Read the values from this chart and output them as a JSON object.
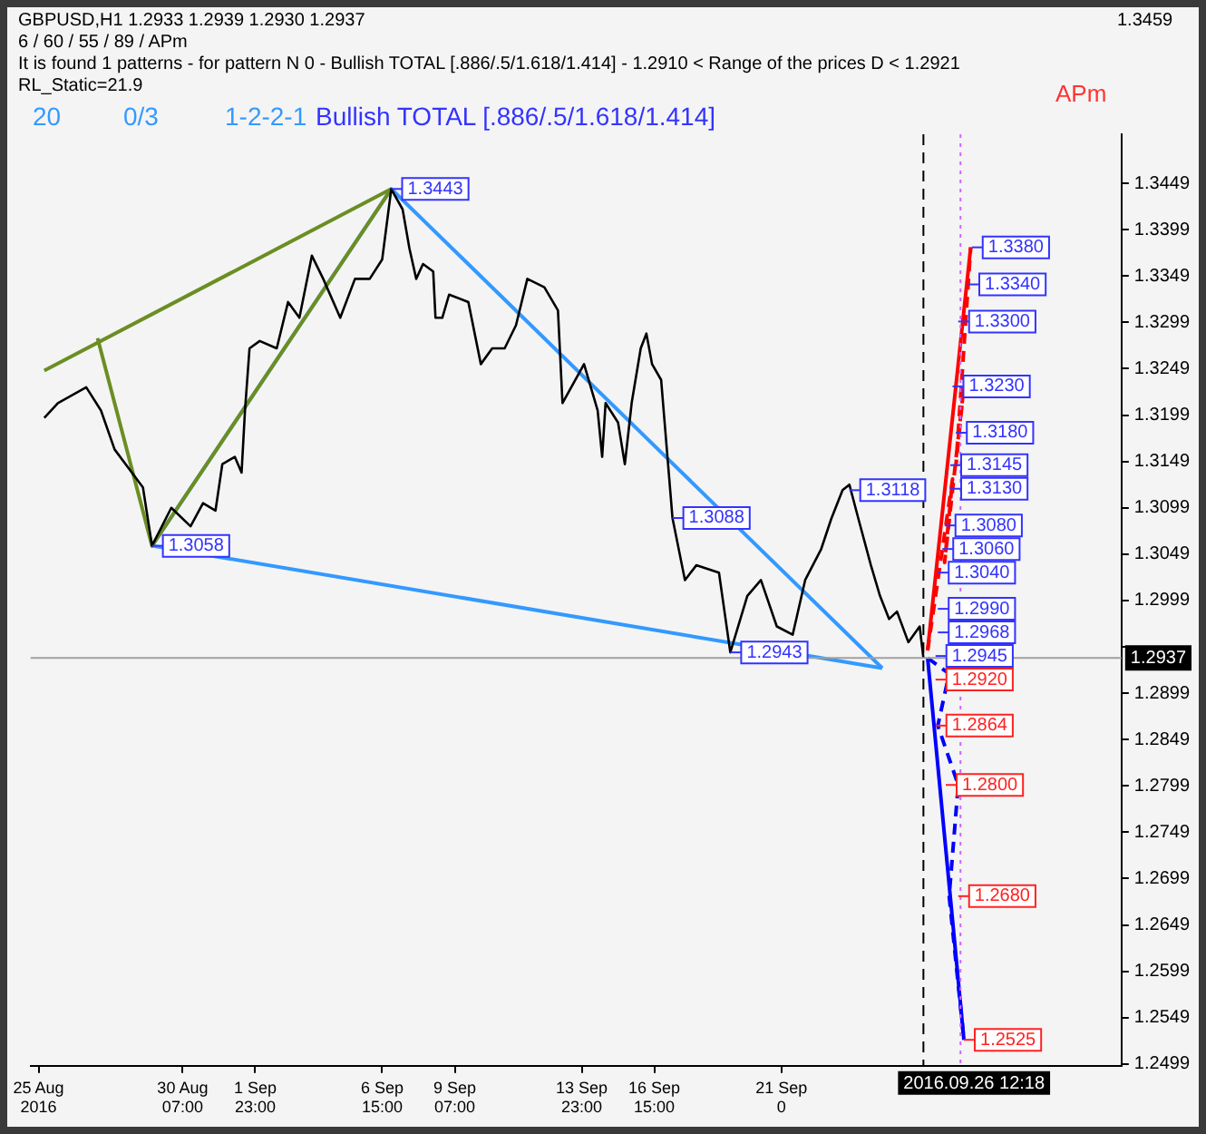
{
  "chart_data": {
    "type": "line",
    "title": "GBPUSD,H1  1.2933 1.2939 1.2930 1.2937",
    "subtitle": "6 / 60 / 55 / 89 / APm",
    "xlim": [
      "2016-08-24T17:00",
      "2016-10-03T19:00"
    ],
    "xticks": [
      {
        "value": "2016-08-25T00:00",
        "label": "25 Aug 2016"
      },
      {
        "value": "2016-08-30T07:00",
        "label": "30 Aug 07:00"
      },
      {
        "value": "2016-09-01T23:00",
        "label": "1 Sep 23:00"
      },
      {
        "value": "2016-09-06T15:00",
        "label": "6 Sep 15:00"
      },
      {
        "value": "2016-09-09T07:00",
        "label": "9 Sep 07:00"
      },
      {
        "value": "2016-09-13T23:00",
        "label": "13 Sep 23:00"
      },
      {
        "value": "2016-09-16T15:00",
        "label": "16 Sep 15:00"
      },
      {
        "value": "2016-09-21T07:00",
        "label": "21 Sep 0"
      }
    ],
    "ylim": [
      1.2497,
      1.3502
    ],
    "yticks": [
      1.2499,
      1.2549,
      1.2599,
      1.2649,
      1.2699,
      1.2749,
      1.2799,
      1.2849,
      1.2899,
      {
        "value": 1.2949,
        "label": null
      },
      1.2999,
      1.3049,
      1.3099,
      1.3149,
      1.3199,
      1.3249,
      1.3299,
      1.3349,
      1.3399,
      1.3449
    ],
    "grid": false,
    "legend": false,
    "series": [
      {
        "type": "line",
        "color": "#000000",
        "line_style": "solid",
        "x": [
          "2016-08-25T05:00",
          "2016-08-25T17:00",
          "2016-08-26T18:00",
          "2016-08-27T07:00",
          "2016-08-27T19:00",
          "2016-08-28T20:00",
          "2016-08-29T04:00",
          "2016-08-29T21:00",
          "2016-08-30T14:00",
          "2016-08-31T01:00",
          "2016-08-31T12:00",
          "2016-08-31T18:00",
          "2016-09-01T05:00",
          "2016-09-01T11:00",
          "2016-09-01T14:00",
          "2016-09-01T18:00",
          "2016-09-02T03:00",
          "2016-09-02T18:00",
          "2016-09-03T04:00",
          "2016-09-03T14:00",
          "2016-09-04T01:00",
          "2016-09-04T11:00",
          "2016-09-05T02:00",
          "2016-09-05T15:00",
          "2016-09-06T04:00",
          "2016-09-06T15:00",
          "2016-09-06T23:00",
          "2016-09-07T09:00",
          "2016-09-07T15:00",
          "2016-09-07T21:00",
          "2016-09-08T03:00",
          "2016-09-08T12:00",
          "2016-09-08T14:00",
          "2016-09-08T20:00",
          "2016-09-09T02:00",
          "2016-09-09T19:00",
          "2016-09-10T06:00",
          "2016-09-10T16:00",
          "2016-09-11T03:00",
          "2016-09-11T13:00",
          "2016-09-11T23:00",
          "2016-09-12T14:00",
          "2016-09-13T02:00",
          "2016-09-13T06:00",
          "2016-09-14T01:00",
          "2016-09-14T13:00",
          "2016-09-14T17:00",
          "2016-09-14T20:00",
          "2016-09-15T07:00",
          "2016-09-15T13:00",
          "2016-09-15T19:00",
          "2016-09-16T03:00",
          "2016-09-16T08:00",
          "2016-09-16T13:00",
          "2016-09-16T21:00",
          "2016-09-17T07:00",
          "2016-09-17T18:00",
          "2016-09-18T04:00",
          "2016-09-19T00:00",
          "2016-09-19T10:00",
          "2016-09-20T01:00",
          "2016-09-20T13:00",
          "2016-09-21T03:00",
          "2016-09-21T17:00",
          "2016-09-22T04:00",
          "2016-09-22T18:00",
          "2016-09-23T03:00",
          "2016-09-23T13:00",
          "2016-09-23T19:00",
          "2016-09-24T03:00",
          "2016-09-24T14:00",
          "2016-09-24T22:00",
          "2016-09-25T06:00",
          "2016-09-25T13:00",
          "2016-09-25T23:00",
          "2016-09-26T09:00",
          "2016-09-26T12:18"
        ],
        "values": [
          1.3196,
          1.3212,
          1.3229,
          1.3204,
          1.3162,
          1.3121,
          1.3058,
          1.3099,
          1.3079,
          1.3104,
          1.3096,
          1.3146,
          1.3154,
          1.3137,
          1.3204,
          1.3271,
          1.3279,
          1.3271,
          1.3321,
          1.3304,
          1.3371,
          1.3346,
          1.3304,
          1.3346,
          1.3346,
          1.3367,
          1.3443,
          1.3421,
          1.3379,
          1.3346,
          1.3362,
          1.3354,
          1.3304,
          1.3304,
          1.3329,
          1.3321,
          1.3254,
          1.3271,
          1.3271,
          1.3296,
          1.3346,
          1.3337,
          1.3312,
          1.3212,
          1.3254,
          1.3204,
          1.3154,
          1.3212,
          1.3191,
          1.3146,
          1.3212,
          1.3271,
          1.3287,
          1.3254,
          1.3237,
          1.3088,
          1.3021,
          1.3037,
          1.3029,
          1.2943,
          1.3004,
          1.3021,
          1.2971,
          1.2962,
          1.3021,
          1.3054,
          1.3087,
          1.3118,
          1.3124,
          1.3087,
          1.3037,
          1.3004,
          1.2979,
          1.2987,
          1.2954,
          1.2971,
          1.2937
        ]
      },
      {
        "type": "line",
        "color": "#6b8e23",
        "line_style": "solid",
        "x": [
          "2016-08-27T04:00",
          "2016-08-29T04:00",
          "2016-09-06T23:00"
        ],
        "values": [
          1.3282,
          1.3058,
          1.3443
        ]
      },
      {
        "type": "line",
        "color": "#6b8e23",
        "line_style": "solid",
        "x": [
          "2016-08-25T05:00",
          "2016-09-06T23:00"
        ],
        "values": [
          1.3247,
          1.3443
        ]
      },
      {
        "type": "line",
        "color": "#3399ff",
        "line_style": "solid",
        "x": [
          "2016-08-29T04:00",
          "2016-09-06T23:00",
          "2016-09-25T00:00"
        ],
        "values": [
          1.3058,
          1.3443,
          1.2926
        ]
      },
      {
        "type": "line",
        "color": "#3399ff",
        "line_style": "solid",
        "x": [
          "2016-08-29T04:00",
          "2016-09-25T00:00"
        ],
        "values": [
          1.3058,
          1.2926
        ]
      },
      {
        "type": "line",
        "color": "#ff0000",
        "line_style": "solid",
        "x": [
          "2016-09-26T16:00",
          "2016-09-28T06:00"
        ],
        "values": [
          1.2945,
          1.338
        ]
      },
      {
        "type": "line",
        "color": "#ff0000",
        "line_style": "dashed",
        "x": [
          "2016-09-26T16:00",
          "2016-09-27T14:00",
          "2016-09-27T07:00",
          "2016-09-28T00:00",
          "2016-09-27T17:00",
          "2016-09-28T06:00"
        ],
        "values": [
          1.2945,
          1.313,
          1.304,
          1.323,
          1.3145,
          1.338
        ]
      },
      {
        "type": "line",
        "color": "#0000ff",
        "line_style": "solid",
        "x": [
          "2016-09-26T16:00",
          "2016-09-28T00:00"
        ],
        "values": [
          1.2937,
          1.2525
        ]
      },
      {
        "type": "line",
        "color": "#0000ff",
        "line_style": "dashed",
        "x": [
          "2016-09-26T16:00",
          "2016-09-27T11:00",
          "2016-09-27T01:00",
          "2016-09-27T19:00",
          "2016-09-27T11:00",
          "2016-09-28T00:00"
        ],
        "values": [
          1.2937,
          1.292,
          1.2864,
          1.28,
          1.268,
          1.2525
        ]
      }
    ],
    "ref_lines": [
      {
        "axis": "y",
        "value": 1.2937,
        "label": "1.2937",
        "color": "#a0a0a0",
        "line_style": "solid"
      },
      {
        "axis": "x",
        "value": "2016-09-26T12:18",
        "label": "2016.09.26 12:18",
        "color": "#000000",
        "line_style": "dashed"
      },
      {
        "axis": "x",
        "value": "2016-09-27T21:00",
        "color": "#cc66ff",
        "line_style": "dotted"
      }
    ],
    "annotations": [
      "It is found 1 patterns  -  for pattern N 0 - Bullish TOTAL [.886/.5/1.618/1.414] - 1.2910 < Range of the prices D < 1.2921",
      "RL_Static=21.9",
      "20",
      "0/3",
      "1-2-2-1",
      "Bullish TOTAL [.886/.5/1.618/1.414]",
      "APm",
      "1.3459",
      {
        "text": "1.3443",
        "x": "2016-09-06T23:00",
        "y": 1.3443
      },
      {
        "text": "1.3058",
        "x": "2016-08-29T04:00",
        "y": 1.3058
      },
      {
        "text": "1.3088",
        "x": "2016-09-17T07:00",
        "y": 1.3088
      },
      {
        "text": "1.3118",
        "x": "2016-09-23T19:00",
        "y": 1.3118
      },
      {
        "text": "1.2943",
        "x": "2016-09-19T10:00",
        "y": 1.2943
      },
      {
        "text": "1.3380",
        "x": "2016-09-28T07:00",
        "y": 1.338
      },
      {
        "text": "1.3340",
        "x": "2016-09-28T04:00",
        "y": 1.334
      },
      {
        "text": "1.3300",
        "x": "2016-09-27T19:00",
        "y": 1.33
      },
      {
        "text": "1.3230",
        "x": "2016-09-27T14:00",
        "y": 1.323
      },
      {
        "text": "1.3180",
        "x": "2016-09-27T17:00",
        "y": 1.318
      },
      {
        "text": "1.3145",
        "x": "2016-09-27T12:00",
        "y": 1.3145
      },
      {
        "text": "1.3130",
        "x": "2016-09-27T12:00",
        "y": 1.313
      },
      {
        "text": "1.3080",
        "x": "2016-09-27T07:00",
        "y": 1.308
      },
      {
        "text": "1.3060",
        "x": "2016-09-27T05:00",
        "y": 1.306
      },
      {
        "text": "1.3040",
        "x": "2016-09-27T01:00",
        "y": 1.304
      },
      {
        "text": "1.2990",
        "x": "2016-09-27T01:00",
        "y": 1.299
      },
      {
        "text": "1.2968",
        "x": "2016-09-27T01:00",
        "y": 1.2968
      },
      {
        "text": "1.2945",
        "x": "2016-09-26T23:00",
        "y": 1.2945
      },
      {
        "text": "1.2920",
        "x": "2016-09-26T23:00",
        "y": 1.292
      },
      {
        "text": "1.2864",
        "x": "2016-09-26T23:00",
        "y": 1.2864
      },
      {
        "text": "1.2800",
        "x": "2016-09-27T08:00",
        "y": 1.28
      },
      {
        "text": "1.2680",
        "x": "2016-09-27T19:00",
        "y": 1.268
      },
      {
        "text": "1.2525",
        "x": "2016-09-28T00:00",
        "y": 1.2525
      }
    ]
  }
}
